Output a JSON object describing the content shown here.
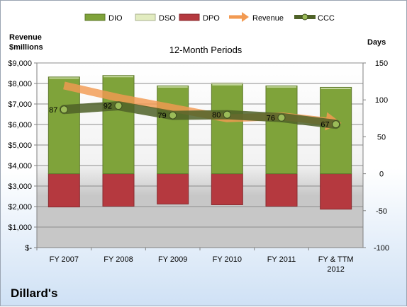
{
  "chart_data": {
    "type": "bar",
    "subtitle": "12-Month Periods",
    "company": "Dillard's",
    "left_axis": {
      "label_line1": "Revenue",
      "label_line2": "$millions",
      "ticks": [
        "$-",
        "$1,000",
        "$2,000",
        "$3,000",
        "$4,000",
        "$5,000",
        "$6,000",
        "$7,000",
        "$8,000",
        "$9,000"
      ],
      "ylim": [
        0,
        9000
      ]
    },
    "right_axis": {
      "label": "Days",
      "ticks": [
        "-100",
        "-50",
        "0",
        "50",
        "100",
        "150"
      ],
      "ylim": [
        -100,
        150
      ]
    },
    "categories": [
      {
        "line1": "FY 2007",
        "line2": ""
      },
      {
        "line1": "FY 2008",
        "line2": ""
      },
      {
        "line1": "FY 2009",
        "line2": ""
      },
      {
        "line1": "FY 2010",
        "line2": ""
      },
      {
        "line1": "FY 2011",
        "line2": ""
      },
      {
        "line1": "FY & TTM",
        "line2": "2012"
      }
    ],
    "series": [
      {
        "name": "DIO",
        "color": "#7fa33a",
        "values": [
          131,
          133,
          119,
          122,
          119,
          117
        ]
      },
      {
        "name": "DSO",
        "color": "#e2ecc0",
        "values": [
          0,
          0,
          0,
          1,
          0,
          0
        ]
      },
      {
        "name": "DPO",
        "color": "#b5393f",
        "values": [
          -45,
          -44,
          -41,
          -42,
          -44,
          -48
        ]
      },
      {
        "name": "Revenue",
        "color": "#f29a52",
        "values": [
          7900,
          7300,
          6800,
          6300,
          6400,
          6100
        ]
      },
      {
        "name": "CCC",
        "color": "#4f6228",
        "values": [
          87,
          92,
          79,
          80,
          76,
          67
        ]
      }
    ],
    "ccc_labels": [
      "87",
      "92",
      "79",
      "80",
      "76",
      "67"
    ],
    "grid": true,
    "legend_position": "top"
  }
}
